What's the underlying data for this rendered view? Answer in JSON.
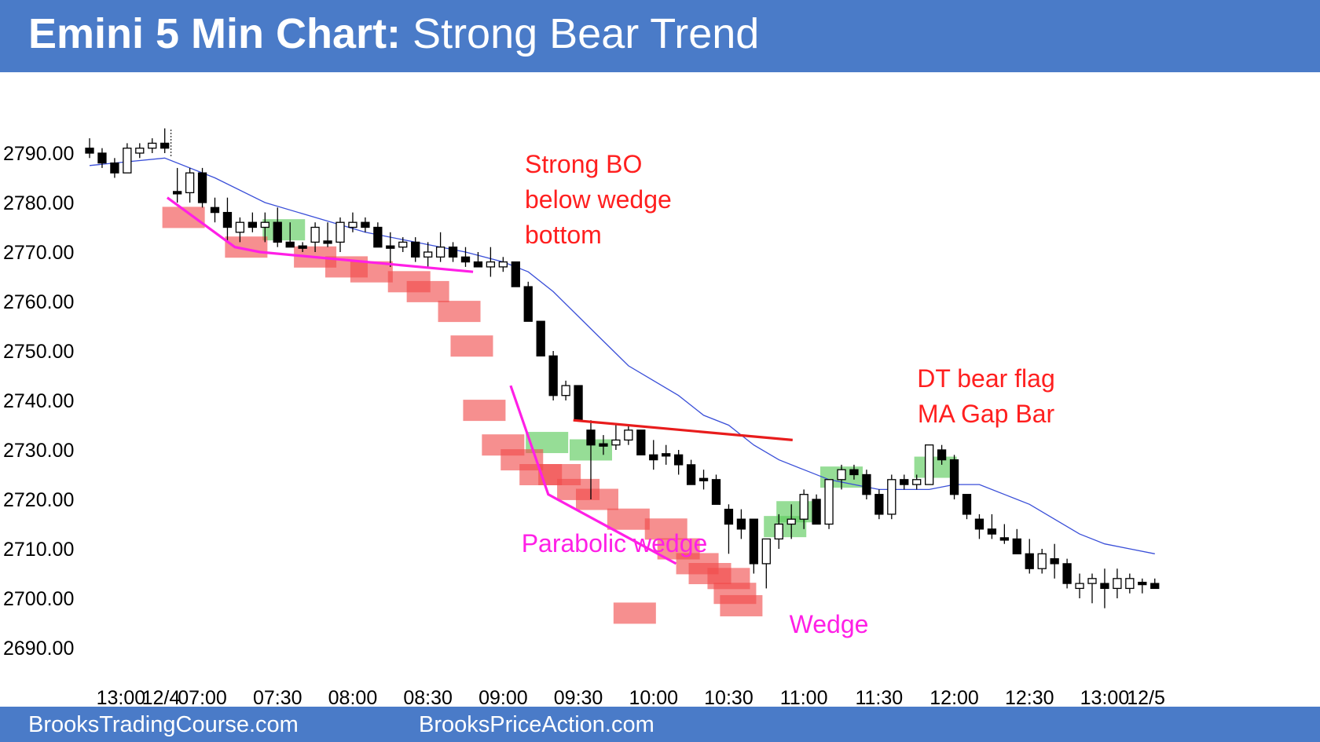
{
  "header": {
    "title_bold": "Emini 5 Min Chart:",
    "title_rest": "Strong Bear Trend"
  },
  "footer": {
    "left_site": "BrooksTradingCourse.com",
    "right_site": "BrooksPriceAction.com"
  },
  "colors": {
    "banner": "#4a7bc8",
    "bull_highlight": "#5ecb5e",
    "bear_highlight": "#f04a4a",
    "ma_line": "#3a4fd8",
    "wedge_line": "#ff1fe6",
    "flag_line": "#e81c1c",
    "red_text": "#ff1f1f",
    "magenta_text": "#ff1fe6"
  },
  "chart_data": {
    "type": "candlestick",
    "title": "",
    "ylim": [
      2684,
      2798
    ],
    "y_ticks": [
      2790,
      2780,
      2770,
      2760,
      2750,
      2740,
      2730,
      2720,
      2710,
      2700,
      2690
    ],
    "y_tick_labels": [
      "2790.00",
      "2780.00",
      "2770.00",
      "2760.00",
      "2750.00",
      "2740.00",
      "2730.00",
      "2720.00",
      "2710.00",
      "2700.00",
      "2690.00"
    ],
    "x_tick_labels": [
      {
        "label": "13:00",
        "bar": 2.5
      },
      {
        "label": "12/4",
        "bar": 5.7
      },
      {
        "label": "07:00",
        "bar": 9
      },
      {
        "label": "07:30",
        "bar": 15
      },
      {
        "label": "08:00",
        "bar": 21
      },
      {
        "label": "08:30",
        "bar": 27
      },
      {
        "label": "09:00",
        "bar": 33
      },
      {
        "label": "09:30",
        "bar": 39
      },
      {
        "label": "10:00",
        "bar": 45
      },
      {
        "label": "10:30",
        "bar": 51
      },
      {
        "label": "11:00",
        "bar": 57
      },
      {
        "label": "11:30",
        "bar": 63
      },
      {
        "label": "12:00",
        "bar": 69
      },
      {
        "label": "12:30",
        "bar": 75
      },
      {
        "label": "13:00",
        "bar": 81
      },
      {
        "label": "12/5",
        "bar": 84.3
      }
    ],
    "session_break_bar": 6.5,
    "series": [
      {
        "ohlc": [
          [
            2791,
            2793,
            2789,
            2790
          ],
          [
            2790,
            2791,
            2787,
            2788
          ],
          [
            2788,
            2789,
            2785,
            2786
          ],
          [
            2786,
            2792,
            2786,
            2791
          ],
          [
            2790,
            2792,
            2789,
            2791
          ],
          [
            2791,
            2793,
            2790,
            2792
          ],
          [
            2792,
            2795,
            2790,
            2791
          ],
          [
            2782,
            2787,
            2780,
            2782
          ],
          [
            2782,
            2787,
            2780,
            2786
          ],
          [
            2786,
            2787,
            2779,
            2780
          ],
          [
            2779,
            2781,
            2776,
            2778
          ],
          [
            2778,
            2781,
            2772,
            2775
          ],
          [
            2774,
            2777,
            2772,
            2776
          ],
          [
            2776,
            2778,
            2774,
            2775
          ],
          [
            2775,
            2778,
            2772,
            2776
          ],
          [
            2776,
            2779,
            2771,
            2772
          ],
          [
            2772,
            2776,
            2771,
            2771
          ],
          [
            2771,
            2772,
            2770,
            2771
          ],
          [
            2772,
            2776,
            2770,
            2775
          ],
          [
            2772,
            2776,
            2771,
            2772
          ],
          [
            2772,
            2777,
            2770,
            2776
          ],
          [
            2775,
            2778,
            2774,
            2776
          ],
          [
            2776,
            2777,
            2774,
            2775
          ],
          [
            2775,
            2776,
            2771,
            2771
          ],
          [
            2771,
            2774,
            2767,
            2771
          ],
          [
            2771,
            2773,
            2770,
            2772
          ],
          [
            2772,
            2773,
            2768,
            2769
          ],
          [
            2769,
            2772,
            2767,
            2770
          ],
          [
            2769,
            2774,
            2768,
            2771
          ],
          [
            2771,
            2772,
            2768,
            2769
          ],
          [
            2769,
            2771,
            2767,
            2768
          ],
          [
            2768,
            2770,
            2767,
            2767
          ],
          [
            2767,
            2771,
            2765,
            2768
          ],
          [
            2767,
            2769,
            2766,
            2768
          ],
          [
            2768,
            2768,
            2763,
            2763
          ],
          [
            2763,
            2764,
            2756,
            2756
          ],
          [
            2756,
            2756,
            2749,
            2749
          ],
          [
            2749,
            2750,
            2740,
            2741
          ],
          [
            2741,
            2744,
            2740,
            2743
          ],
          [
            2743,
            2743,
            2736,
            2736
          ],
          [
            2734,
            2736,
            2720,
            2731
          ],
          [
            2731,
            2733,
            2729,
            2731
          ],
          [
            2731,
            2735,
            2730,
            2732
          ],
          [
            2732,
            2735,
            2731,
            2734
          ],
          [
            2734,
            2734,
            2729,
            2729
          ],
          [
            2729,
            2732,
            2726,
            2728
          ],
          [
            2729,
            2731,
            2727,
            2729
          ],
          [
            2729,
            2730,
            2725,
            2727
          ],
          [
            2727,
            2728,
            2723,
            2723
          ],
          [
            2724,
            2726,
            2722,
            2724
          ],
          [
            2724,
            2725,
            2719,
            2719
          ],
          [
            2718,
            2719,
            2709,
            2715
          ],
          [
            2716,
            2718,
            2712,
            2714
          ],
          [
            2716,
            2716,
            2705,
            2707
          ],
          [
            2707,
            2712,
            2702,
            2712
          ],
          [
            2712,
            2717,
            2710,
            2715
          ],
          [
            2715,
            2719,
            2712,
            2716
          ],
          [
            2716,
            2722,
            2714,
            2721
          ],
          [
            2720,
            2721,
            2715,
            2715
          ],
          [
            2715,
            2724,
            2714,
            2724
          ],
          [
            2724,
            2727,
            2722,
            2726
          ],
          [
            2726,
            2727,
            2724,
            2725
          ],
          [
            2725,
            2726,
            2720,
            2721
          ],
          [
            2721,
            2722,
            2716,
            2717
          ],
          [
            2717,
            2725,
            2716,
            2724
          ],
          [
            2724,
            2725,
            2722,
            2723
          ],
          [
            2723,
            2725,
            2722,
            2724
          ],
          [
            2723,
            2731,
            2723,
            2731
          ],
          [
            2730,
            2731,
            2727,
            2728
          ],
          [
            2728,
            2729,
            2720,
            2721
          ],
          [
            2721,
            2721,
            2716,
            2717
          ],
          [
            2716,
            2717,
            2712,
            2714
          ],
          [
            2714,
            2717,
            2712,
            2713
          ],
          [
            2712,
            2715,
            2711,
            2712
          ],
          [
            2712,
            2714,
            2709,
            2709
          ],
          [
            2709,
            2712,
            2705,
            2706
          ],
          [
            2706,
            2710,
            2705,
            2709
          ],
          [
            2708,
            2711,
            2704,
            2707
          ],
          [
            2707,
            2708,
            2702,
            2703
          ],
          [
            2702,
            2705,
            2700,
            2703
          ],
          [
            2703,
            2705,
            2699,
            2704
          ],
          [
            2703,
            2706,
            2698,
            2702
          ],
          [
            2702,
            2706,
            2700,
            2704
          ],
          [
            2702,
            2705,
            2701,
            2704
          ],
          [
            2703,
            2704,
            2701,
            2703
          ],
          [
            2703,
            2704,
            2702,
            2702
          ]
        ],
        "ma": [
          [
            0,
            2787.5
          ],
          [
            6,
            2789
          ],
          [
            10,
            2785
          ],
          [
            14,
            2780
          ],
          [
            18,
            2777
          ],
          [
            22,
            2774
          ],
          [
            26,
            2772
          ],
          [
            30,
            2770
          ],
          [
            33,
            2768
          ],
          [
            35,
            2766
          ],
          [
            37,
            2762
          ],
          [
            39,
            2757
          ],
          [
            41,
            2752
          ],
          [
            43,
            2747
          ],
          [
            45,
            2744
          ],
          [
            47,
            2741
          ],
          [
            49,
            2737
          ],
          [
            51,
            2735
          ],
          [
            53,
            2731
          ],
          [
            55,
            2728
          ],
          [
            57,
            2726
          ],
          [
            59,
            2724
          ],
          [
            61,
            2723
          ],
          [
            63,
            2722
          ],
          [
            65,
            2722
          ],
          [
            67,
            2722
          ],
          [
            69,
            2723
          ],
          [
            71,
            2723
          ],
          [
            73,
            2721
          ],
          [
            75,
            2719
          ],
          [
            77,
            2716
          ],
          [
            79,
            2713
          ],
          [
            81,
            2711
          ],
          [
            83,
            2710
          ],
          [
            85,
            2709
          ]
        ]
      }
    ],
    "bull_boxes": [
      [
        15.5,
        2774.5
      ],
      [
        36.5,
        2731.5
      ],
      [
        40,
        2730
      ],
      [
        55.5,
        2714.5
      ],
      [
        56.5,
        2717.5
      ],
      [
        60,
        2724.5
      ],
      [
        67.5,
        2726.5
      ]
    ],
    "bear_boxes": [
      [
        7.5,
        2777
      ],
      [
        12.5,
        2771
      ],
      [
        18,
        2769
      ],
      [
        20.5,
        2767
      ],
      [
        22.5,
        2766
      ],
      [
        25.5,
        2764
      ],
      [
        27,
        2762
      ],
      [
        29.5,
        2758
      ],
      [
        30.5,
        2751
      ],
      [
        31.5,
        2738
      ],
      [
        33,
        2731
      ],
      [
        34.5,
        2728
      ],
      [
        36,
        2725
      ],
      [
        37.5,
        2725
      ],
      [
        39,
        2722
      ],
      [
        40.5,
        2720
      ],
      [
        43,
        2716
      ],
      [
        43.5,
        2697
      ],
      [
        46,
        2714
      ],
      [
        47,
        2710
      ],
      [
        48.5,
        2707
      ],
      [
        49.5,
        2705
      ],
      [
        51,
        2704
      ],
      [
        51.5,
        2701
      ],
      [
        52,
        2698.5
      ]
    ],
    "wedge_lines": [
      [
        [
          6.2,
          2781
        ],
        [
          11.6,
          2771
        ],
        [
          13.6,
          2770
        ],
        [
          30.6,
          2766
        ]
      ],
      [
        [
          33.6,
          2743
        ],
        [
          36.6,
          2721
        ],
        [
          46.8,
          2707
        ]
      ]
    ],
    "flag_line": [
      [
        38.6,
        2736
      ],
      [
        56.1,
        2732
      ]
    ],
    "annotations": [
      {
        "lines": [
          "Strong BO",
          "below wedge",
          "bottom"
        ],
        "color": "red"
      },
      {
        "lines": [
          "Parabolic wedge"
        ],
        "color": "magenta"
      },
      {
        "lines": [
          "Wedge"
        ],
        "color": "magenta"
      },
      {
        "lines": [
          "DT bear flag",
          "MA Gap Bar"
        ],
        "color": "red"
      }
    ]
  }
}
